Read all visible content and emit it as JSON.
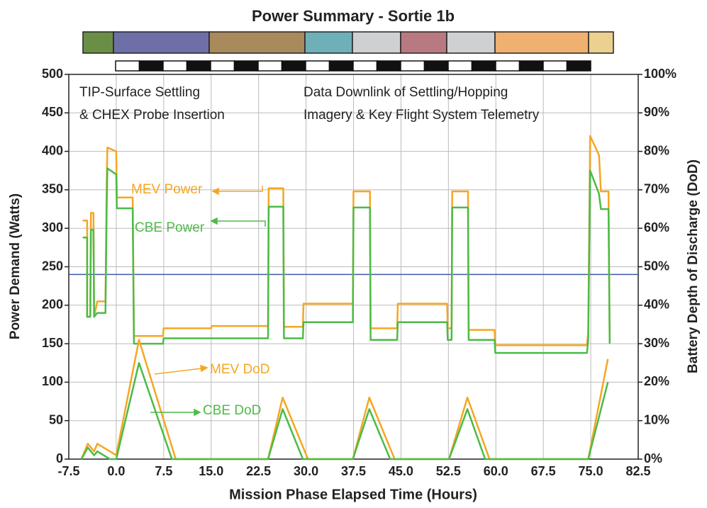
{
  "chart_data": {
    "type": "line",
    "title": "Power Summary - Sortie 1b",
    "xlabel": "Mission Phase Elapsed Time (Hours)",
    "ylabel": "Power Demand (Watts)",
    "y2label": "Battery Depth of Discharge (DoD)",
    "annotations": [
      "TIP-Surface Settling",
      "& CHEX Probe Insertion",
      "Data Downlink of Settling/Hopping",
      "Imagery & Key Flight System Telemetry"
    ],
    "xlim": [
      -7.5,
      82.5
    ],
    "xticks": [
      -7.5,
      {
        "value": 0,
        "label": "0.0"
      },
      7.5,
      {
        "value": 15,
        "label": "15.0"
      },
      22.5,
      {
        "value": 30,
        "label": "30.0"
      },
      37.5,
      {
        "value": 45,
        "label": "45.0"
      },
      52.5,
      {
        "value": 60,
        "label": "60.0"
      },
      67.5,
      {
        "value": 75,
        "label": "75.0"
      },
      82.5
    ],
    "ylim": [
      0,
      500
    ],
    "yticks": [
      0,
      50,
      100,
      150,
      200,
      250,
      300,
      350,
      400,
      450,
      500
    ],
    "y2lim": [
      0,
      100
    ],
    "y2ticks": [
      {
        "value": 0,
        "label": "0%"
      },
      {
        "value": 10,
        "label": "10%"
      },
      {
        "value": 20,
        "label": "20%"
      },
      {
        "value": 30,
        "label": "30%"
      },
      {
        "value": 40,
        "label": "40%"
      },
      {
        "value": 50,
        "label": "50%"
      },
      {
        "value": 60,
        "label": "60%"
      },
      {
        "value": 70,
        "label": "70%"
      },
      {
        "value": 80,
        "label": "80%"
      },
      {
        "value": 90,
        "label": "90%"
      },
      {
        "value": 100,
        "label": "100%"
      }
    ],
    "grid": true,
    "hline": {
      "value": 240,
      "color": "#3a5aa8"
    },
    "series": [
      {
        "name": "MEV Power",
        "color": "#f5a623",
        "x": [
          -5.3,
          -4.6,
          -4.6,
          -4.1,
          -4.0,
          -3.6,
          -3.5,
          -3.0,
          -1.7,
          -1.5,
          -1.4,
          0,
          0.1,
          2.6,
          2.8,
          7.4,
          7.5,
          15,
          15.1,
          24,
          24.1,
          26.4,
          26.5,
          29.5,
          29.6,
          37.4,
          37.5,
          40.1,
          40.2,
          44.4,
          44.5,
          52.3,
          52.4,
          53.0,
          53.1,
          55.6,
          55.7,
          59.8,
          59.9,
          74.4,
          74.6,
          74.9,
          76.3,
          76.6,
          77.8,
          78.0
        ],
        "values": [
          310,
          310,
          185,
          185,
          320,
          320,
          185,
          205,
          205,
          360,
          405,
          400,
          340,
          340,
          160,
          160,
          170,
          170,
          173,
          173,
          352,
          352,
          172,
          172,
          202,
          202,
          348,
          348,
          170,
          170,
          202,
          202,
          170,
          170,
          348,
          348,
          168,
          168,
          148,
          148,
          165,
          420,
          395,
          348,
          348,
          155
        ]
      },
      {
        "name": "CBE Power",
        "color": "#4cbb47",
        "x": [
          -5.3,
          -4.6,
          -4.6,
          -4.1,
          -4.0,
          -3.6,
          -3.5,
          -3.0,
          -1.7,
          -1.5,
          -1.4,
          0,
          0.1,
          2.6,
          2.8,
          7.4,
          7.5,
          24,
          24.1,
          26.4,
          26.5,
          29.5,
          29.6,
          37.4,
          37.5,
          40.1,
          40.2,
          44.4,
          44.5,
          52.3,
          52.4,
          53.0,
          53.1,
          55.6,
          55.7,
          59.8,
          59.9,
          74.4,
          74.6,
          74.9,
          76.3,
          76.6,
          77.8,
          78.0
        ],
        "values": [
          288,
          288,
          185,
          185,
          298,
          298,
          185,
          190,
          190,
          330,
          378,
          370,
          326,
          326,
          150,
          150,
          157,
          157,
          328,
          328,
          157,
          157,
          178,
          178,
          327,
          327,
          155,
          155,
          178,
          178,
          155,
          155,
          327,
          327,
          155,
          155,
          138,
          138,
          155,
          375,
          345,
          325,
          325,
          150
        ]
      },
      {
        "name": "MEV DoD",
        "color": "#f5a623",
        "axis": "y2",
        "x": [
          -5.5,
          -4.5,
          -3.5,
          -3.0,
          -1.0,
          0,
          3.6,
          9.4,
          24,
          26.3,
          30.3,
          37.4,
          40,
          44,
          52.6,
          55.5,
          59,
          74.6,
          77.7
        ],
        "values": [
          0,
          4,
          2,
          4,
          2,
          1,
          31,
          0,
          0,
          16,
          0,
          0,
          16,
          0,
          0,
          16,
          0,
          0,
          26
        ]
      },
      {
        "name": "CBE DoD",
        "color": "#4cbb47",
        "axis": "y2",
        "x": [
          -5.5,
          -4.5,
          -3.5,
          -3.0,
          -1.0,
          0,
          3.6,
          8.8,
          24,
          26.3,
          29.5,
          37.4,
          40,
          43.3,
          52.6,
          55.5,
          58.3,
          74.6,
          77.7
        ],
        "values": [
          0,
          3,
          1,
          2,
          0,
          0,
          25,
          0,
          0,
          13,
          0,
          0,
          13,
          0,
          0,
          13,
          0,
          0,
          20
        ]
      }
    ]
  }
}
